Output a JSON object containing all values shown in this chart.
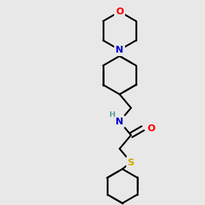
{
  "bg_color": "#e8e8e8",
  "bond_color": "#000000",
  "N_color": "#0000cd",
  "O_color": "#ff0000",
  "S_color": "#ccaa00",
  "H_color": "#5f9ea0",
  "line_width": 1.8,
  "figsize": [
    3.0,
    3.0
  ],
  "dpi": 100,
  "xlim": [
    0,
    300
  ],
  "ylim": [
    0,
    300
  ]
}
